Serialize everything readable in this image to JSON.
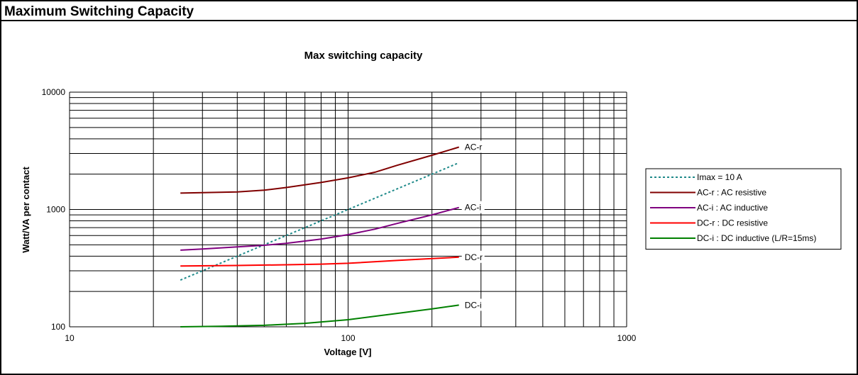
{
  "header": {
    "title": "Maximum Switching Capacity"
  },
  "chart_data": {
    "type": "line",
    "title": "Max switching capacity",
    "xlabel": "Voltage [V]",
    "ylabel": "Watt/VA per contact",
    "xscale": "log",
    "yscale": "log",
    "xlim": [
      10,
      1000
    ],
    "ylim": [
      100,
      10000
    ],
    "xticks": [
      "10",
      "100",
      "1000"
    ],
    "yticks": [
      "100",
      "1000",
      "10000"
    ],
    "grid": true,
    "legend_position": "right",
    "series": [
      {
        "name": "Imax = 10 A",
        "color": "#1f8a8a",
        "dash": true,
        "label": "",
        "x": [
          25,
          50,
          100,
          150,
          200,
          250
        ],
        "y": [
          250,
          500,
          1000,
          1500,
          2000,
          2500
        ]
      },
      {
        "name": "AC-r : AC resistive",
        "color": "#800000",
        "dash": false,
        "label": "AC-r",
        "x": [
          25,
          30,
          40,
          50,
          60,
          80,
          100,
          125,
          150,
          200,
          250
        ],
        "y": [
          1380,
          1390,
          1410,
          1460,
          1540,
          1700,
          1860,
          2080,
          2380,
          2900,
          3400
        ]
      },
      {
        "name": "AC-i : AC inductive",
        "color": "#800080",
        "dash": false,
        "label": "AC-i",
        "x": [
          25,
          30,
          40,
          50,
          60,
          80,
          100,
          125,
          150,
          200,
          250
        ],
        "y": [
          450,
          460,
          480,
          495,
          515,
          560,
          610,
          680,
          760,
          900,
          1040
        ]
      },
      {
        "name": "DC-r : DC resistive",
        "color": "#ff0000",
        "dash": false,
        "label": "DC-r",
        "x": [
          25,
          40,
          60,
          80,
          100,
          150,
          200,
          250
        ],
        "y": [
          330,
          333,
          338,
          342,
          348,
          368,
          382,
          392
        ]
      },
      {
        "name": "DC-i : DC inductive (L/R=15ms)",
        "color": "#008000",
        "dash": false,
        "label": "DC-i",
        "x": [
          25,
          35,
          50,
          70,
          100,
          150,
          200,
          250
        ],
        "y": [
          100,
          101,
          103,
          107,
          115,
          130,
          142,
          153
        ]
      }
    ]
  }
}
